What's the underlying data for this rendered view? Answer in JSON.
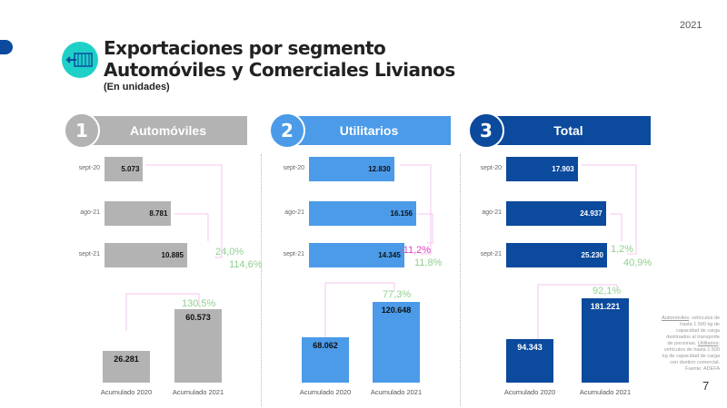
{
  "year": "2021",
  "title_line1": "Exportaciones por segmento",
  "title_line2": "Automóviles y Comerciales Livianos",
  "subtitle": "(En unidades)",
  "colors": {
    "automoviles": "#b3b3b3",
    "utilitarios": "#4b9be9",
    "total": "#0b4a9c",
    "pct_up": "#8fd08f",
    "pct_down": "#e040c0",
    "connector": "#f6c4ef"
  },
  "chart_data": [
    {
      "type": "bar",
      "number": "1",
      "segment": "Automóviles",
      "color": "#b3b3b3",
      "monthly": {
        "categories": [
          "sept-20",
          "ago-21",
          "sept-21"
        ],
        "values": [
          5073,
          8781,
          10885
        ],
        "labels": [
          "5.073",
          "8.781",
          "10.885"
        ]
      },
      "monthly_changes": {
        "vs_prev_month": "24,0%",
        "vs_prev_year": "114,6%"
      },
      "accumulated": {
        "categories": [
          "Acumulado 2020",
          "Acumulado 2021"
        ],
        "values": [
          26281,
          60573
        ],
        "labels": [
          "26.281",
          "60.573"
        ],
        "change": "130,5%"
      }
    },
    {
      "type": "bar",
      "number": "2",
      "segment": "Utilitarios",
      "color": "#4b9be9",
      "monthly": {
        "categories": [
          "sept-20",
          "ago-21",
          "sept-21"
        ],
        "values": [
          12830,
          16156,
          14345
        ],
        "labels": [
          "12.830",
          "16.156",
          "14.345"
        ]
      },
      "monthly_changes": {
        "vs_prev_month": "-11,2%",
        "vs_prev_year": "11,8%"
      },
      "accumulated": {
        "categories": [
          "Acumulado 2020",
          "Acumulado 2021"
        ],
        "values": [
          68062,
          120648
        ],
        "labels": [
          "68.062",
          "120.648"
        ],
        "change": "77,3%"
      }
    },
    {
      "type": "bar",
      "number": "3",
      "segment": "Total",
      "color": "#0b4a9c",
      "monthly": {
        "categories": [
          "sept-20",
          "ago-21",
          "sept-21"
        ],
        "values": [
          17903,
          24937,
          25230
        ],
        "labels": [
          "17.903",
          "24.937",
          "25.230"
        ]
      },
      "monthly_changes": {
        "vs_prev_month": "1,2%",
        "vs_prev_year": "40,9%"
      },
      "accumulated": {
        "categories": [
          "Acumulado 2020",
          "Acumulado 2021"
        ],
        "values": [
          94343,
          181221
        ],
        "labels": [
          "94.343",
          "181.221"
        ],
        "change": "92,1%"
      }
    }
  ],
  "note": {
    "term1": "Automóviles",
    "def1": ": vehículos de hasta 1.500 kg de capacidad de carga destinados al transporte de personas.",
    "term2": "Utilitarios",
    "def2": ": vehículos de hasta 1.500 kg de capacidad de carga con destino comercial.",
    "source": "Fuente: ADEFA"
  },
  "page_number": "7"
}
